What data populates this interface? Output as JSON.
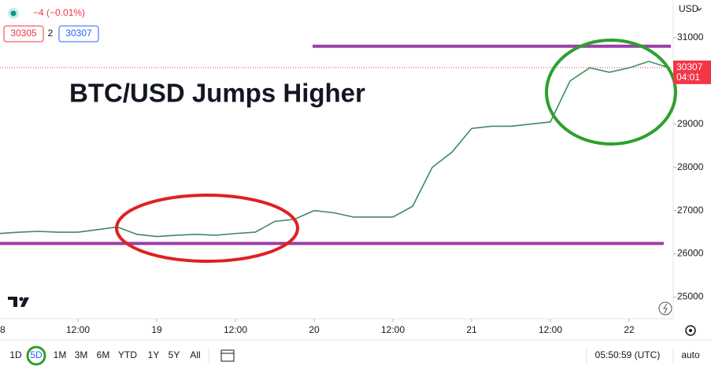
{
  "chart_data": {
    "type": "line",
    "title": "BTC/USD Jumps Higher",
    "currency": "USD",
    "change": "−4 (−0.01%)",
    "bid": "30305",
    "spread": "2",
    "ask": "30307",
    "last_price": 30307,
    "countdown": "04:01",
    "categories": [
      "8",
      null,
      null,
      null,
      "12:00",
      null,
      null,
      null,
      "19",
      null,
      null,
      null,
      "12:00",
      null,
      null,
      null,
      "20",
      null,
      null,
      null,
      "12:00",
      null,
      null,
      null,
      "21",
      null,
      null,
      null,
      "12:00",
      null,
      null,
      null,
      "22",
      null,
      null
    ],
    "series": [
      {
        "name": "BTC/USD",
        "color": "#3d8a63",
        "values": [
          26470,
          26500,
          26520,
          26500,
          26500,
          26560,
          26620,
          26450,
          26400,
          26430,
          26450,
          26430,
          26470,
          26500,
          26750,
          26800,
          27000,
          26950,
          26850,
          26850,
          26850,
          27100,
          28000,
          28350,
          28900,
          28950,
          28950,
          29000,
          29050,
          30000,
          30300,
          30200,
          30300,
          30450,
          30307
        ]
      }
    ],
    "ylim": [
      24500,
      31870
    ],
    "yticks": [
      25000,
      26000,
      27000,
      28000,
      29000,
      31000
    ],
    "grid": false,
    "levels": [
      {
        "value": 30800,
        "color": "#9b3fa8"
      },
      {
        "value": 26240,
        "color": "#9b3fa8"
      }
    ]
  },
  "toolbar": {
    "ranges": [
      "1D",
      "5D",
      "1M",
      "3M",
      "6M",
      "YTD",
      "1Y",
      "5Y",
      "All"
    ],
    "selected": 1,
    "clock": "05:50:59 (UTC)",
    "scale": "auto"
  }
}
